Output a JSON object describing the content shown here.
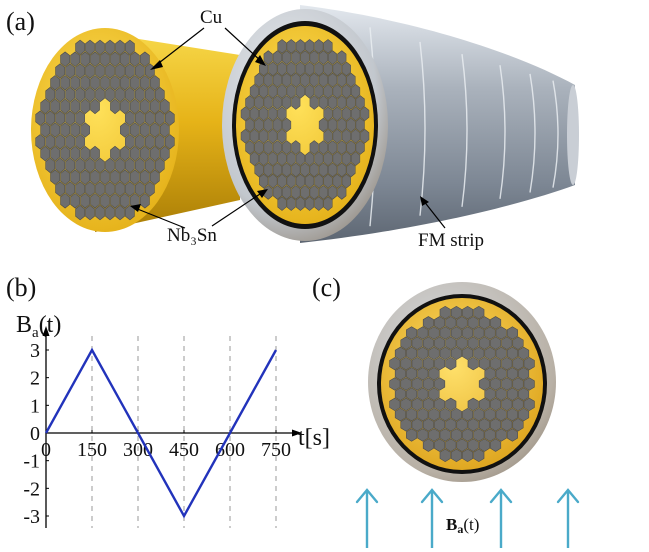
{
  "panel_labels": {
    "a": "(a)",
    "b": "(b)",
    "c": "(c)"
  },
  "annotations": {
    "cu": "Cu",
    "nb3sn": "Nb₃Sn",
    "fm_strip": "FM strip"
  },
  "colors": {
    "copper_gold": "#f2c21c",
    "filament_gray": "#6e6e6e",
    "sheath_silver": "#b9c0c8",
    "plot_line": "#2233bb",
    "field_arrow": "#4aaac9"
  },
  "field_label": "Bₐ(t)",
  "chart_data": {
    "type": "line",
    "ylabel": "Bₐ(t)",
    "xlabel": "t[s]",
    "x_ticks": [
      "0",
      "150",
      "300",
      "450",
      "600",
      "750"
    ],
    "y_ticks": [
      "3",
      "2",
      "1",
      "0",
      "-1",
      "-2",
      "-3"
    ],
    "xlim": [
      0,
      750
    ],
    "ylim": [
      -3,
      3
    ],
    "grid": "vertical dashed at 150, 300, 450, 600, 750",
    "series": [
      {
        "x": [
          0,
          150,
          450,
          750
        ],
        "y": [
          0,
          3,
          -3,
          3
        ]
      }
    ]
  }
}
